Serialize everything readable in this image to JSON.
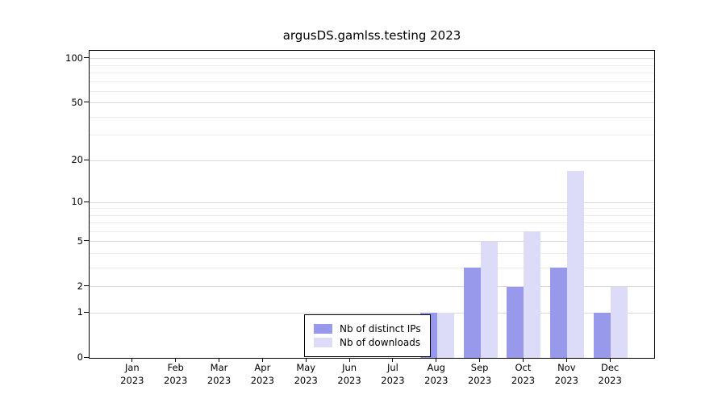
{
  "chart_data": {
    "type": "bar",
    "title": "argusDS.gamlss.testing 2023",
    "categories": [
      "Jan",
      "Feb",
      "Mar",
      "Apr",
      "May",
      "Jun",
      "Jul",
      "Aug",
      "Sep",
      "Oct",
      "Nov",
      "Dec"
    ],
    "x_year_label": "2023",
    "series": [
      {
        "name": "Nb of distinct IPs",
        "color": "#9999ec",
        "values": [
          0,
          0,
          0,
          0,
          0,
          0,
          0,
          1,
          3,
          2,
          3,
          1
        ]
      },
      {
        "name": "Nb of downloads",
        "color": "#dcdcf8",
        "values": [
          0,
          0,
          0,
          0,
          0,
          0,
          0,
          1,
          5,
          6,
          17,
          2
        ]
      }
    ],
    "xlabel": "",
    "ylabel": "",
    "y_ticks": [
      0,
      1,
      2,
      5,
      10,
      20,
      50,
      100
    ],
    "y_minor_ticks": [
      3,
      4,
      6,
      7,
      8,
      9,
      30,
      40,
      60,
      70,
      80,
      90
    ],
    "scale": "log1p",
    "ylim": [
      0,
      113
    ],
    "grid": true,
    "legend_position": "inside-bottom-center",
    "colors": {
      "grid_major": "#d9d9d9",
      "grid_minor": "#ececec",
      "axis": "#000000",
      "background": "#ffffff"
    }
  }
}
